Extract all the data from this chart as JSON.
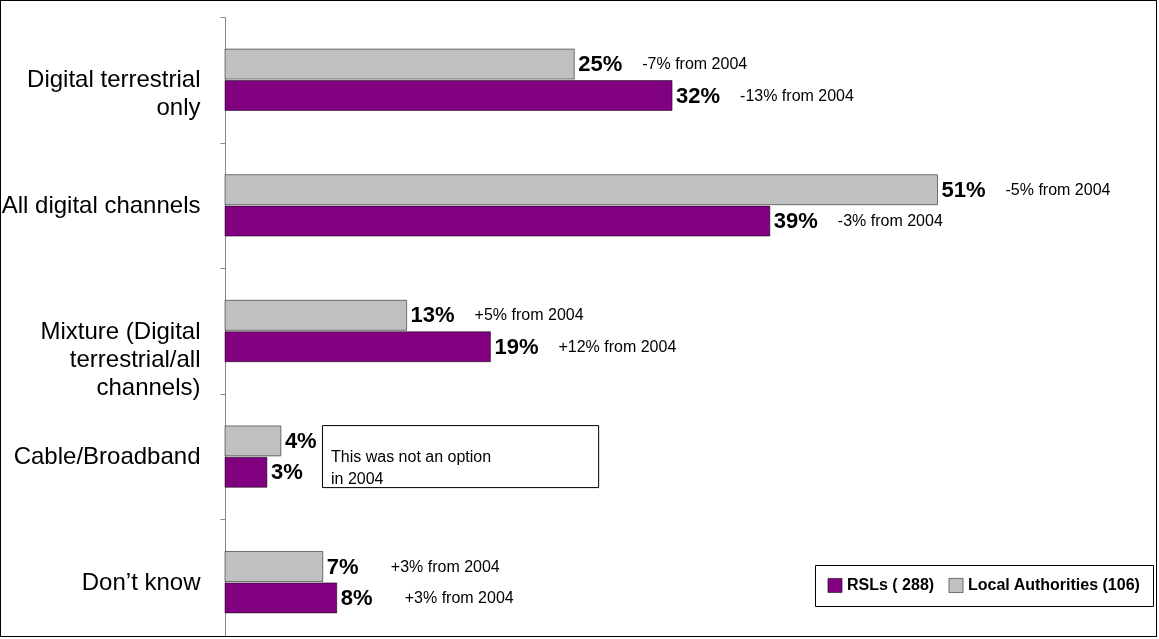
{
  "chart_data": {
    "type": "bar",
    "orientation": "horizontal",
    "categories": [
      "Digital terrestrial only",
      "All digital channels",
      "Mixture (Digital terrestrial/all channels)",
      "Cable/Broadband",
      "Don’t know"
    ],
    "series": [
      {
        "name": "Local Authorities (106)",
        "color": "#c0c0c0",
        "values": [
          25,
          51,
          13,
          4,
          7
        ],
        "value_labels": [
          "25%",
          "51%",
          "13%",
          "4%",
          "7%"
        ]
      },
      {
        "name": "RSLs ( 288)",
        "color": "#800080",
        "values": [
          32,
          39,
          19,
          3,
          8
        ],
        "value_labels": [
          "32%",
          "39%",
          "19%",
          "3%",
          "8%"
        ]
      }
    ],
    "annotations": [
      "-7% from 2004",
      "-13% from 2004",
      "-5% from 2004",
      "-3% from 2004",
      "+5% from 2004",
      "+12% from 2004",
      "This was not an option in 2004",
      "+3% from 2004",
      "+3% from 2004"
    ],
    "tick_labels": "y",
    "legend": "bottom right",
    "grid": false
  }
}
